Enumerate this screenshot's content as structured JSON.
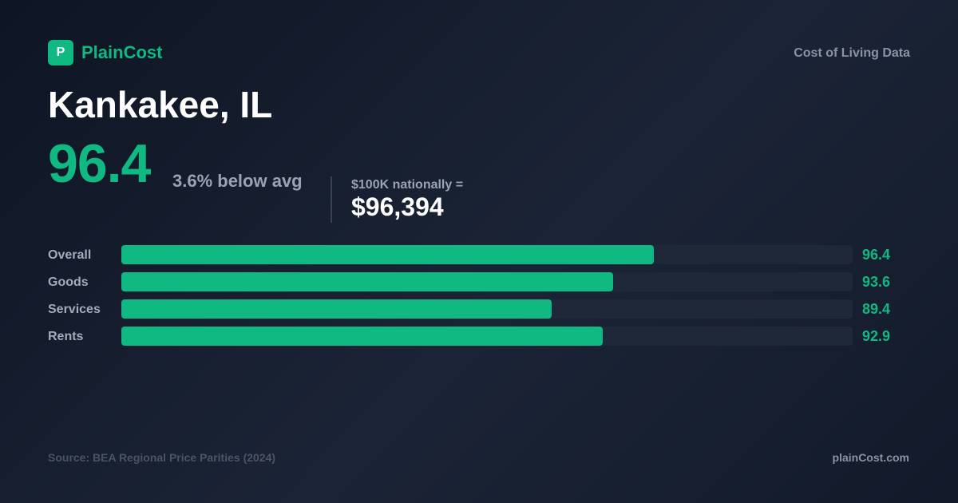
{
  "brand": {
    "logo_letter": "P",
    "name": "PlainCost",
    "tagline": "Cost of Living Data"
  },
  "city": "Kankakee, IL",
  "score": "96.4",
  "delta_text": "3.6% below avg",
  "equivalent": {
    "label": "$100K nationally =",
    "value": "$96,394"
  },
  "colors": {
    "accent": "#10b981",
    "track": "#1e2839",
    "background": "#141c2c"
  },
  "chart_data": {
    "type": "bar",
    "orientation": "horizontal",
    "categories": [
      "Overall",
      "Goods",
      "Services",
      "Rents"
    ],
    "values": [
      96.4,
      93.6,
      89.4,
      92.9
    ],
    "value_labels": [
      "96.4",
      "93.6",
      "89.4",
      "92.9"
    ],
    "xlim": [
      60,
      110
    ],
    "grid": false
  },
  "footer": {
    "source": "Source: BEA Regional Price Parities (2024)",
    "site": "plainCost.com"
  }
}
